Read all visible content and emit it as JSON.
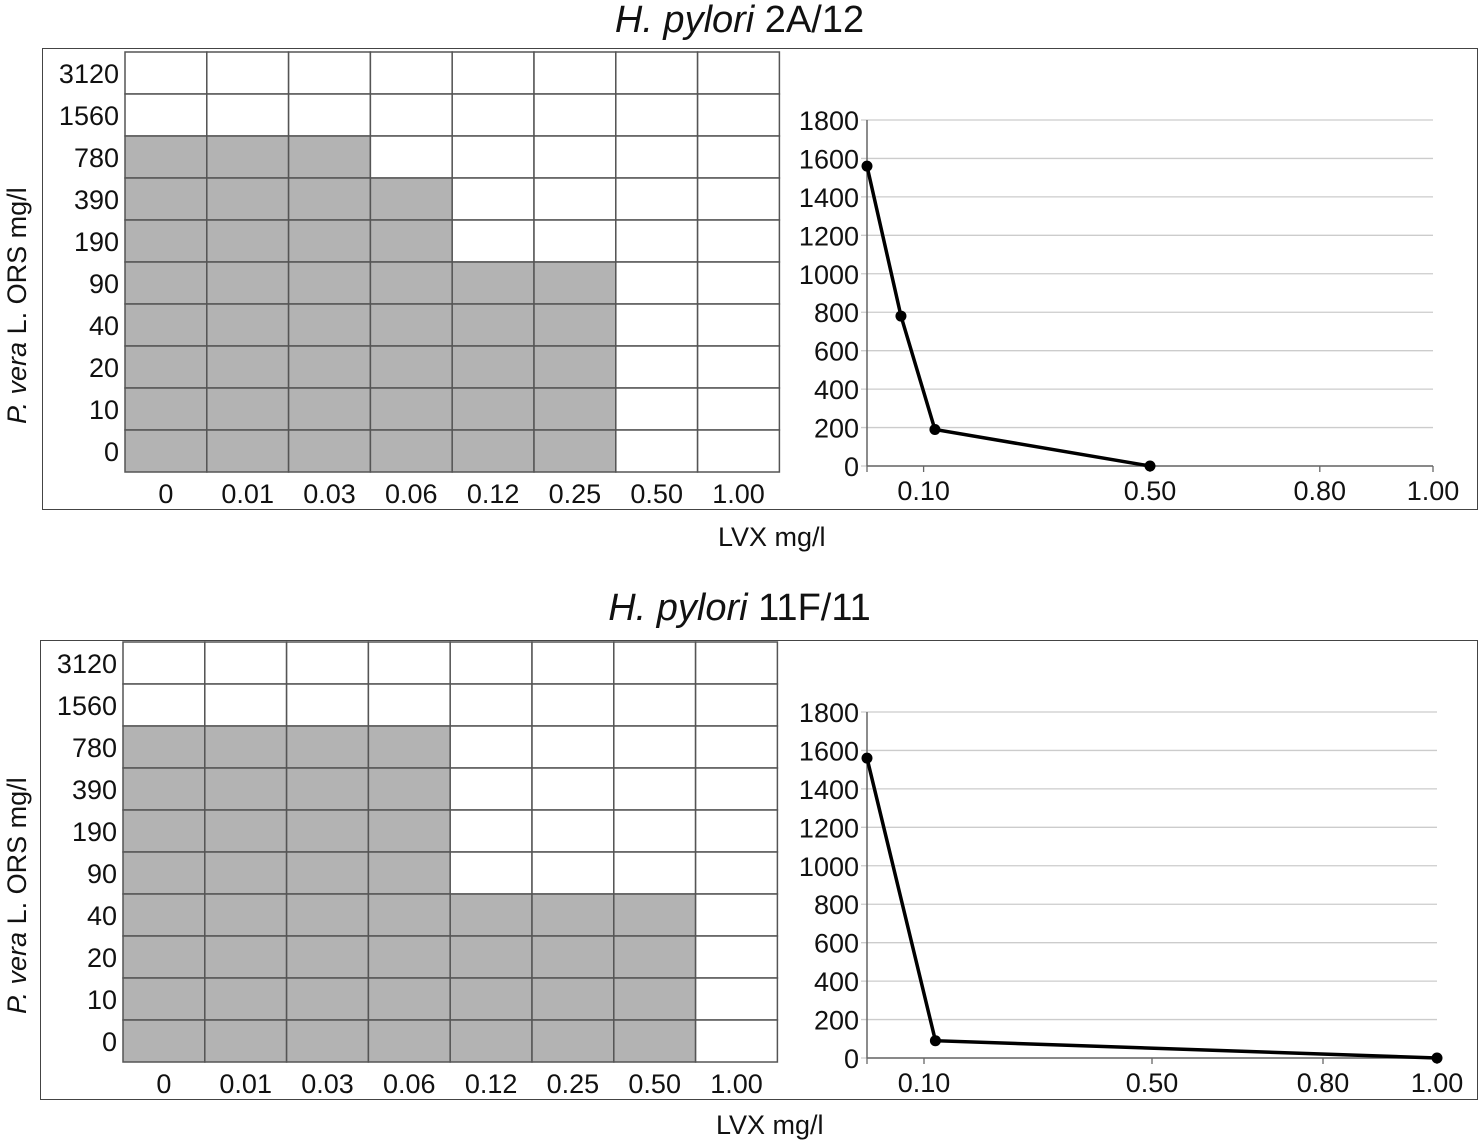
{
  "panels": [
    {
      "title_italic": "H. pylori",
      "title_rest": " 2A/12",
      "ylabel_italic": "P. vera",
      "ylabel_rest": " L. ORS mg/l",
      "xlabel": "LVX mg/l"
    },
    {
      "title_italic": "H. pylori",
      "title_rest": " 11F/11",
      "ylabel_italic": "P. vera",
      "ylabel_rest": " L. ORS mg/l",
      "xlabel": "LVX mg/l"
    }
  ],
  "colors": {
    "growth": "#b3b3b3",
    "no_growth": "#ffffff",
    "grid": "#555555",
    "line": "#000000",
    "chart_grid": "#cccccc"
  },
  "chart_data": [
    {
      "type": "heatmap",
      "x_categories": [
        "0",
        "0.01",
        "0.03",
        "0.06",
        "0.12",
        "0.25",
        "0.50",
        "1.00"
      ],
      "y_categories": [
        "3120",
        "1560",
        "780",
        "390",
        "190",
        "90",
        "40",
        "20",
        "10",
        "0"
      ],
      "growth": [
        [
          0,
          0,
          0,
          0,
          0,
          0,
          0,
          0
        ],
        [
          0,
          0,
          0,
          0,
          0,
          0,
          0,
          0
        ],
        [
          1,
          1,
          1,
          0,
          0,
          0,
          0,
          0
        ],
        [
          1,
          1,
          1,
          1,
          0,
          0,
          0,
          0
        ],
        [
          1,
          1,
          1,
          1,
          0,
          0,
          0,
          0
        ],
        [
          1,
          1,
          1,
          1,
          1,
          1,
          0,
          0
        ],
        [
          1,
          1,
          1,
          1,
          1,
          1,
          0,
          0
        ],
        [
          1,
          1,
          1,
          1,
          1,
          1,
          0,
          0
        ],
        [
          1,
          1,
          1,
          1,
          1,
          1,
          0,
          0
        ],
        [
          1,
          1,
          1,
          1,
          1,
          1,
          0,
          0
        ]
      ]
    },
    {
      "type": "line",
      "x": [
        0,
        0.06,
        0.12,
        0.5
      ],
      "y": [
        1560,
        780,
        190,
        0
      ],
      "xticks": [
        "0.10",
        "0.50",
        "0.80",
        "1.00"
      ],
      "xtick_values": [
        0.1,
        0.5,
        0.8,
        1.0
      ],
      "xlim": [
        0,
        1.0
      ],
      "ylim": [
        0,
        1800
      ],
      "yticks": [
        0,
        200,
        400,
        600,
        800,
        1000,
        1200,
        1400,
        1600,
        1800
      ],
      "grid": true
    },
    {
      "type": "heatmap",
      "x_categories": [
        "0",
        "0.01",
        "0.03",
        "0.06",
        "0.12",
        "0.25",
        "0.50",
        "1.00"
      ],
      "y_categories": [
        "3120",
        "1560",
        "780",
        "390",
        "190",
        "90",
        "40",
        "20",
        "10",
        "0"
      ],
      "growth": [
        [
          0,
          0,
          0,
          0,
          0,
          0,
          0,
          0
        ],
        [
          0,
          0,
          0,
          0,
          0,
          0,
          0,
          0
        ],
        [
          1,
          1,
          1,
          1,
          0,
          0,
          0,
          0
        ],
        [
          1,
          1,
          1,
          1,
          0,
          0,
          0,
          0
        ],
        [
          1,
          1,
          1,
          1,
          0,
          0,
          0,
          0
        ],
        [
          1,
          1,
          1,
          1,
          0,
          0,
          0,
          0
        ],
        [
          1,
          1,
          1,
          1,
          1,
          1,
          1,
          0
        ],
        [
          1,
          1,
          1,
          1,
          1,
          1,
          1,
          0
        ],
        [
          1,
          1,
          1,
          1,
          1,
          1,
          1,
          0
        ],
        [
          1,
          1,
          1,
          1,
          1,
          1,
          1,
          0
        ]
      ]
    },
    {
      "type": "line",
      "x": [
        0,
        0.12,
        1.0
      ],
      "y": [
        1560,
        90,
        0
      ],
      "xticks": [
        "0.10",
        "0.50",
        "0.80",
        "1.00"
      ],
      "xtick_values": [
        0.1,
        0.5,
        0.8,
        1.0
      ],
      "xlim": [
        0,
        1.0
      ],
      "ylim": [
        0,
        1800
      ],
      "yticks": [
        0,
        200,
        400,
        600,
        800,
        1000,
        1200,
        1400,
        1600,
        1800
      ],
      "grid": true
    }
  ]
}
